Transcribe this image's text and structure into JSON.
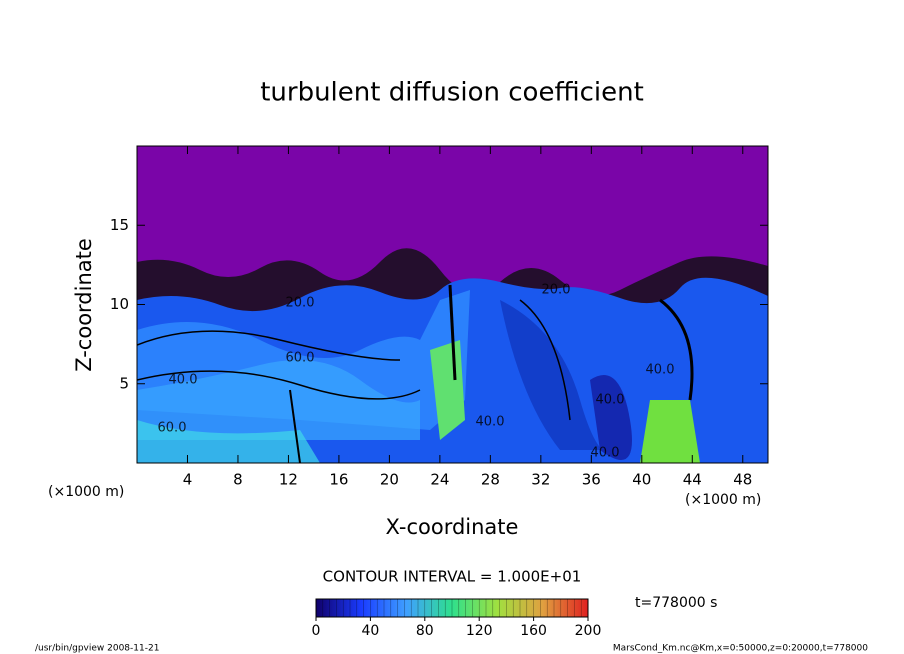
{
  "chart_data": {
    "type": "contour",
    "title": "turbulent diffusion coefficient",
    "xlabel": "X-coordinate",
    "ylabel": "Z-coordinate",
    "x_unit": "(×1000 m)",
    "xlim": [
      0,
      50
    ],
    "xticks": [
      4,
      8,
      12,
      16,
      20,
      24,
      28,
      32,
      36,
      40,
      44,
      48
    ],
    "ylim": [
      0,
      20
    ],
    "yticks": [
      5,
      10,
      15
    ],
    "contour_labels": [
      "20.0",
      "20.0",
      "60.0",
      "40.0",
      "60.0",
      "40.0",
      "40.0",
      "40.0",
      "40.0"
    ],
    "contour_interval": "CONTOUR INTERVAL = 1.000E+01",
    "colorbar": {
      "lim": [
        0,
        200
      ],
      "ticks": [
        0,
        40,
        80,
        120,
        160,
        200
      ],
      "colors": [
        "#10006a",
        "#1a3cff",
        "#3fa0ff",
        "#2fe08c",
        "#a0e040",
        "#e0a040",
        "#e02020"
      ]
    },
    "time_label": "t=778000 s",
    "footer_left": "/usr/bin/gpview   2008-11-21",
    "footer_right": "MarsCond_Km.nc@Km,x=0:50000,z=0:20000,t=778000"
  }
}
